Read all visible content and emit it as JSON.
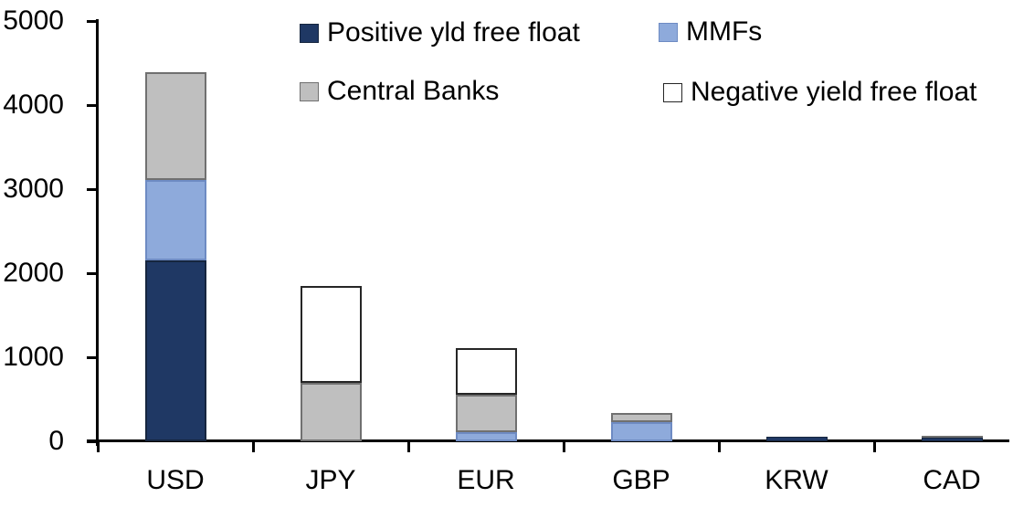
{
  "chart_data": {
    "type": "bar",
    "stacked": true,
    "title": "",
    "categories": [
      "USD",
      "JPY",
      "EUR",
      "GBP",
      "KRW",
      "CAD"
    ],
    "series": [
      {
        "name": "Positive yld free float",
        "color": "#1F3864",
        "border": "#16263F",
        "values": [
          2150,
          0,
          0,
          0,
          50,
          40
        ]
      },
      {
        "name": "MMFs",
        "color": "#8EAADB",
        "border": "#6E8BC3",
        "values": [
          960,
          0,
          110,
          230,
          0,
          0
        ]
      },
      {
        "name": "Central Banks",
        "color": "#BFBFBF",
        "border": "#707070",
        "values": [
          1280,
          700,
          440,
          105,
          0,
          25
        ]
      },
      {
        "name": "Negative yield free float",
        "color": "#FFFFFF",
        "border": "#262626",
        "values": [
          0,
          1150,
          560,
          0,
          0,
          0
        ]
      }
    ],
    "ylim": [
      0,
      5000
    ],
    "yticks": [
      0,
      1000,
      2000,
      3000,
      4000,
      5000
    ],
    "xlabel": "",
    "ylabel": "",
    "grid": false,
    "legend_position": "top",
    "axis_color": "#000000",
    "background": "#FFFFFF"
  }
}
